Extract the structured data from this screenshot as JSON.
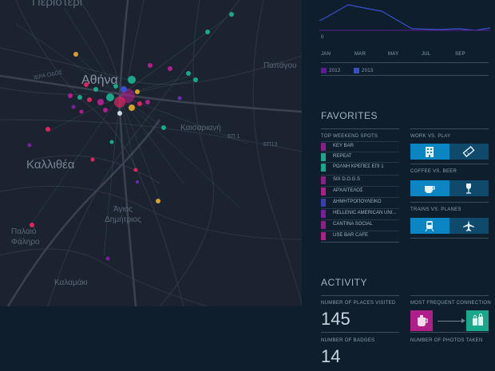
{
  "map": {
    "labels": {
      "top_partial": "Περιστέρι",
      "athens": "Αθήνα",
      "iera_odos": "ΙΕΡΑ ΟΔΟΣ",
      "papagou": "Παπάγου",
      "kaisariani": "Καισαριανή",
      "ep1": "ΕΠ 1",
      "ep13": "ΕΠ13",
      "kallithea": "Καλλιθέα",
      "agios_dimitrios": "Άγιος Δημήτριος",
      "palaio_faliro": "Παλαιό Φάληρο",
      "kalamaki": "Καλαμάκι"
    }
  },
  "timeline": {
    "zero_label": "0",
    "months": [
      "JAN",
      "MAR",
      "MAY",
      "JUL",
      "SEP"
    ],
    "legend": [
      {
        "label": "2012",
        "color": "#5a1f8a"
      },
      {
        "label": "2013",
        "color": "#3a4fd0"
      }
    ]
  },
  "favorites": {
    "title": "FAVORITES",
    "top_spots_title": "TOP WEEKEND SPOTS",
    "spots": [
      {
        "name": "KEY BAR",
        "color": "#8e1e8a"
      },
      {
        "name": "REPEAT",
        "color": "#1aa88c"
      },
      {
        "name": "ΡΩΛΝΗ ΚΡΕΠΕΣ ΕΠΙ 1",
        "color": "#1aa88c"
      },
      {
        "name": "SIX D.O.G.S",
        "color": "#8e1e8a"
      },
      {
        "name": "ΑΡΧΑΙΤΕΛΟΣ",
        "color": "#b01e8a"
      },
      {
        "name": "ΔΗΜΗΤΡΟΠΟΥΛΕΙΚΟ",
        "color": "#3a3fb0"
      },
      {
        "name": "HELLENIC AMERICAN UNI...",
        "color": "#7a1e9a"
      },
      {
        "name": "CANTINA SOCIAL",
        "color": "#8e1e8a"
      },
      {
        "name": "USE BAR CAFE",
        "color": "#b01e8a"
      }
    ],
    "comparisons": [
      {
        "title": "WORK VS. PLAY",
        "left_icon": "office-building-icon",
        "right_icon": "ticket-icon",
        "left_share": 0.5
      },
      {
        "title": "COFFEE VS. BEER",
        "left_icon": "coffee-cup-icon",
        "right_icon": "wine-glass-icon",
        "left_share": 0.5
      },
      {
        "title": "TRAINS VS. PLANES",
        "left_icon": "train-icon",
        "right_icon": "airplane-icon",
        "left_share": 0.5
      }
    ]
  },
  "activity": {
    "title": "ACTIVITY",
    "places_label": "NUMBER OF PLACES VISITED",
    "places_value": "145",
    "badges_label": "NUMBER OF BADGES",
    "badges_value": "14",
    "connection_label": "MOST FREQUENT CONNECTION",
    "photos_label": "NUMBER OF PHOTOS TAKEN",
    "connection_from_icon": "coffee-pot-icon",
    "connection_to_icon": "shopping-bags-icon"
  },
  "colors": {
    "background": "#0e1e2c",
    "accent_blue": "#0b86c2",
    "magenta": "#b01e8a",
    "teal": "#1aa88c"
  }
}
